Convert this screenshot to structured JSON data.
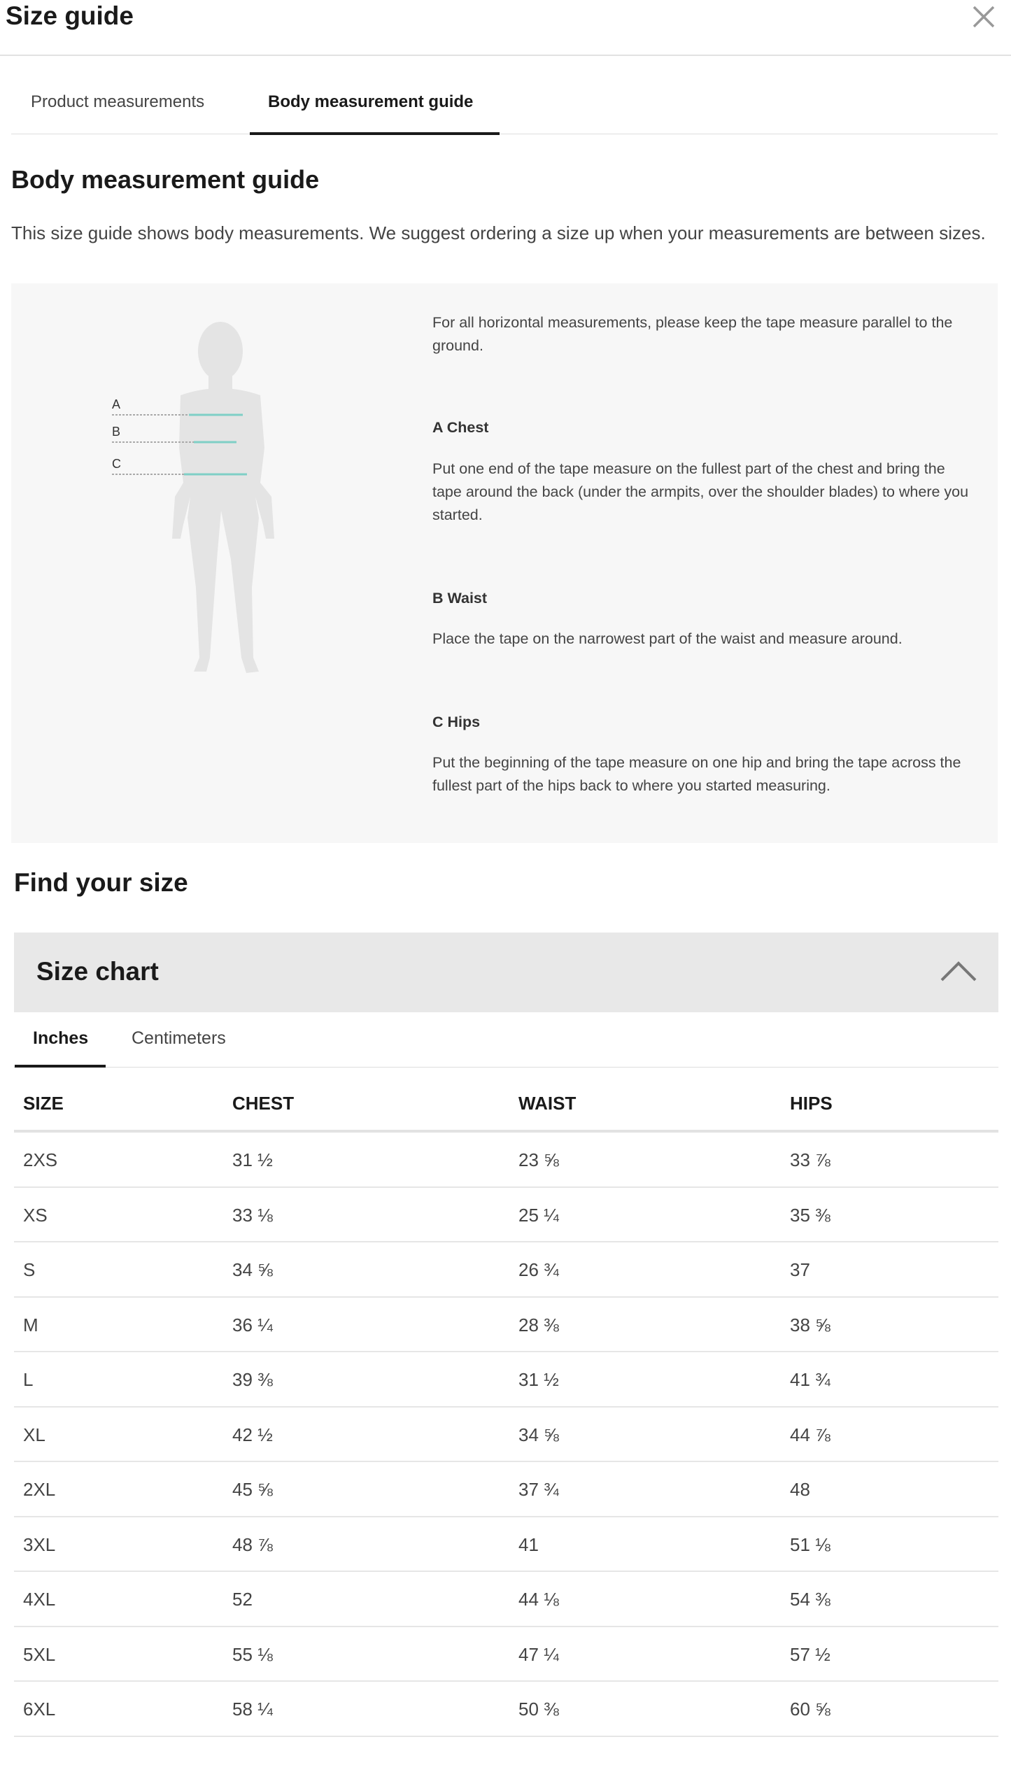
{
  "header": {
    "title": "Size guide",
    "close_icon": "close-icon"
  },
  "tabs": [
    {
      "label": "Product measurements",
      "active": false
    },
    {
      "label": "Body measurement guide",
      "active": true
    }
  ],
  "guide": {
    "heading": "Body measurement guide",
    "description": "This size guide shows body measurements. We suggest ordering a size up when your measurements are between sizes.",
    "figure_labels": [
      "A",
      "B",
      "C"
    ],
    "line_color": "#7fcfc6",
    "intro": "For all horizontal measurements, please keep the tape measure parallel to the ground.",
    "sections": [
      {
        "title": "A Chest",
        "text": "Put one end of the tape measure on the fullest part of the chest and bring the tape around the back (under the armpits, over the shoulder blades) to where you started."
      },
      {
        "title": "B Waist",
        "text": "Place the tape on the narrowest part of the waist and measure around."
      },
      {
        "title": "C Hips",
        "text": "Put the beginning of the tape measure on one hip and bring the tape across the fullest part of the hips back to where you started measuring."
      }
    ]
  },
  "find": {
    "heading": "Find your size"
  },
  "size_chart": {
    "title": "Size chart",
    "expanded": true,
    "toggle_icon": "chevron-up-icon",
    "unit_tabs": [
      {
        "label": "Inches",
        "active": true
      },
      {
        "label": "Centimeters",
        "active": false
      }
    ],
    "columns": [
      "SIZE",
      "CHEST",
      "WAIST",
      "HIPS"
    ],
    "rows": [
      [
        "2XS",
        "31 ½",
        "23 ⅝",
        "33 ⅞"
      ],
      [
        "XS",
        "33 ⅛",
        "25 ¼",
        "35 ⅜"
      ],
      [
        "S",
        "34 ⅝",
        "26 ¾",
        "37"
      ],
      [
        "M",
        "36 ¼",
        "28 ⅜",
        "38 ⅝"
      ],
      [
        "L",
        "39 ⅜",
        "31 ½",
        "41 ¾"
      ],
      [
        "XL",
        "42 ½",
        "34 ⅝",
        "44 ⅞"
      ],
      [
        "2XL",
        "45 ⅝",
        "37 ¾",
        "48"
      ],
      [
        "3XL",
        "48 ⅞",
        "41",
        "51 ⅛"
      ],
      [
        "4XL",
        "52",
        "44 ⅛",
        "54 ⅜"
      ],
      [
        "5XL",
        "55 ⅛",
        "47 ¼",
        "57 ½"
      ],
      [
        "6XL",
        "58 ¼",
        "50 ⅜",
        "60 ⅝"
      ]
    ]
  }
}
